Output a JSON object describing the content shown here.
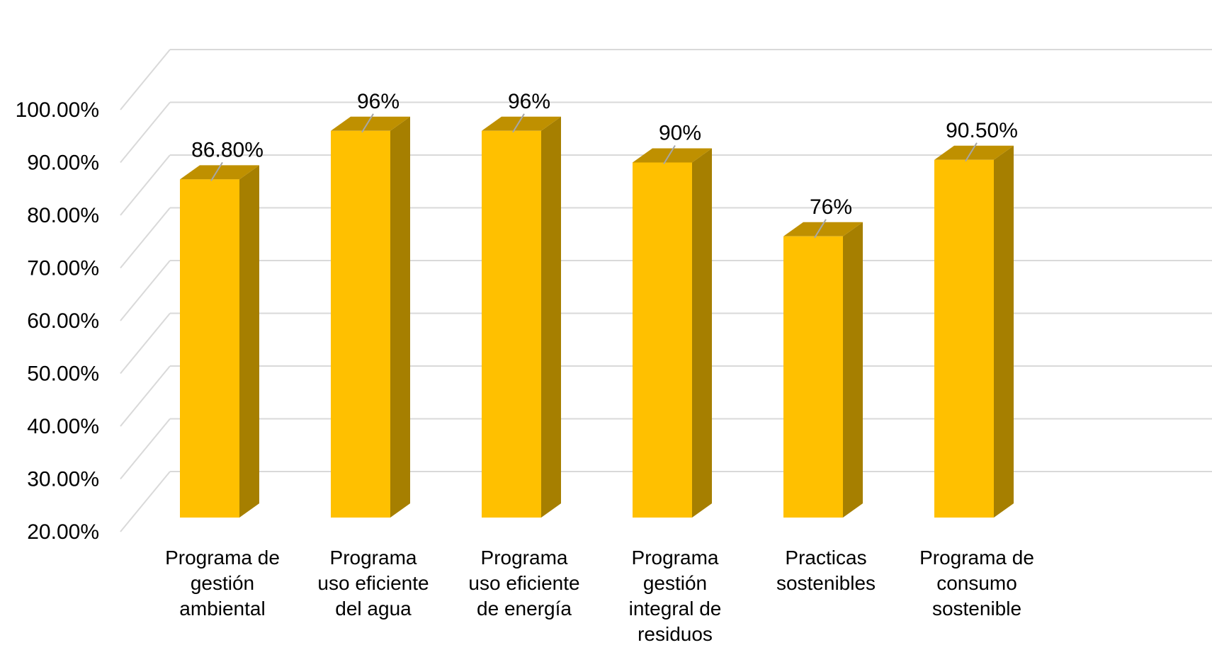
{
  "chart_data": {
    "type": "bar",
    "style": "3d-column",
    "categories": [
      [
        "Programa de",
        "gestión",
        "ambiental"
      ],
      [
        "Programa",
        "uso eficiente",
        "del agua"
      ],
      [
        "Programa",
        "uso eficiente",
        "de energía"
      ],
      [
        "Programa",
        "gestión",
        "integral de",
        "residuos"
      ],
      [
        "Practicas",
        "sostenibles"
      ],
      [
        "Programa de",
        "consumo",
        "sostenible"
      ]
    ],
    "values": [
      86.8,
      96,
      96,
      90,
      76,
      90.5
    ],
    "data_labels": [
      "86.80%",
      "96%",
      "96%",
      "90%",
      "76%",
      "90.50%"
    ],
    "y_ticks": [
      "20.00%",
      "30.00%",
      "40.00%",
      "50.00%",
      "60.00%",
      "70.00%",
      "80.00%",
      "90.00%",
      "100.00%"
    ],
    "ylim": [
      20,
      100
    ],
    "grid": true,
    "legend": "none",
    "colors": {
      "bar_front": "#FFC000",
      "bar_side": "#A67F00",
      "bar_top": "#BF9000",
      "gridline": "#D9D9D9"
    }
  }
}
